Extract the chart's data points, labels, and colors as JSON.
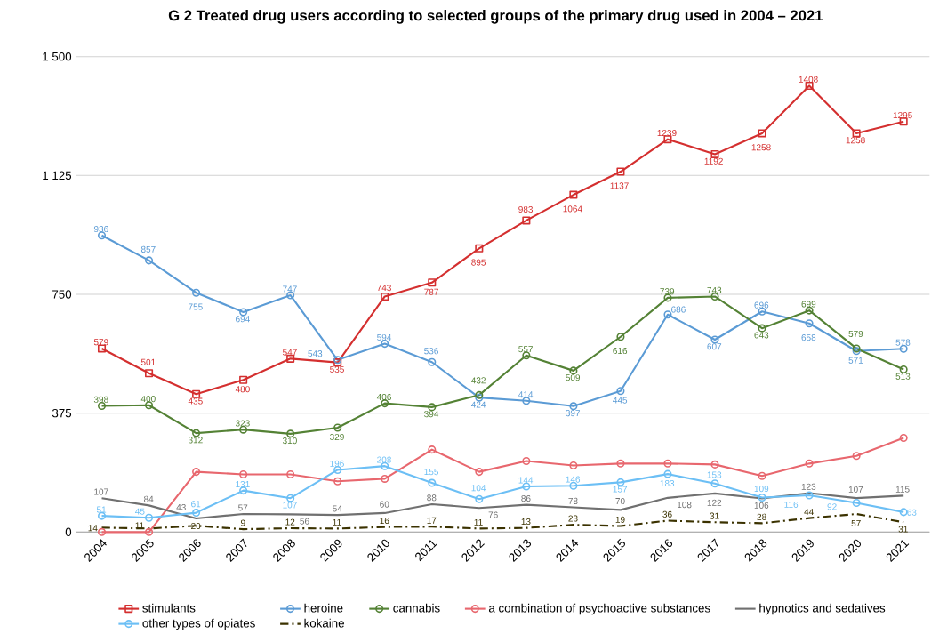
{
  "chart_data": {
    "type": "line",
    "title": "G 2 Treated drug users according to selected groups of the primary drug used in 2004 – 2021",
    "categories": [
      "2004",
      "2005",
      "2006",
      "2007",
      "2008",
      "2009",
      "2010",
      "2011",
      "2012",
      "2013",
      "2014",
      "2015",
      "2016",
      "2017",
      "2018",
      "2019",
      "2020",
      "2021"
    ],
    "ylim": [
      0,
      1500
    ],
    "yticks": [
      0,
      375,
      750,
      {
        "value": 1125,
        "label": "1 125"
      },
      {
        "value": 1500,
        "label": "1 500"
      }
    ],
    "grid": "y",
    "legend": "bottom",
    "series": [
      {
        "name": "stimulants",
        "color": "#d42f2f",
        "marker": "square",
        "values": [
          579,
          501,
          435,
          480,
          547,
          535,
          743,
          787,
          895,
          983,
          1064,
          1137,
          1239,
          1192,
          1258,
          1408,
          1258,
          1295
        ],
        "value_labels": [
          "579",
          "501",
          "435",
          "480",
          "547",
          "535",
          "743",
          "787",
          "895",
          "983",
          "1064",
          "1137",
          "1239",
          "1192",
          "1258",
          "1408",
          "1258",
          "1295"
        ]
      },
      {
        "name": "heroine",
        "color": "#5b9bd5",
        "marker": "circle",
        "values": [
          936,
          857,
          755,
          694,
          747,
          543,
          594,
          536,
          424,
          414,
          397,
          445,
          686,
          607,
          696,
          658,
          571,
          578
        ],
        "value_labels": [
          "936",
          "857",
          "755",
          "694",
          "747",
          "543",
          "594",
          "536",
          "424",
          "414",
          "397",
          "445",
          "686",
          "607",
          "696",
          "658",
          "571",
          "578"
        ]
      },
      {
        "name": "cannabis",
        "color": "#548235",
        "marker": "circle",
        "values": [
          398,
          400,
          312,
          323,
          310,
          329,
          406,
          394,
          432,
          557,
          509,
          616,
          739,
          743,
          643,
          699,
          579,
          513
        ],
        "value_labels": [
          "398",
          "400",
          "312",
          "323",
          "310",
          "329",
          "406",
          "394",
          "432",
          "557",
          "509",
          "616",
          "739",
          "743",
          "643",
          "699",
          "579",
          "513"
        ]
      },
      {
        "name": "a combination of psychoactive substances",
        "color": "#e8676e",
        "marker": "circle",
        "values": [
          0,
          0,
          190,
          182,
          182,
          160,
          168,
          260,
          190,
          224,
          210,
          216,
          216,
          213,
          177,
          216,
          240,
          297
        ]
      },
      {
        "name": "hypnotics and sedatives",
        "color": "#707070",
        "marker": "none",
        "values": [
          107,
          84,
          43,
          57,
          56,
          54,
          60,
          88,
          76,
          86,
          78,
          70,
          108,
          122,
          106,
          123,
          107,
          115
        ],
        "value_labels": [
          "107",
          "84",
          "43",
          "57",
          "56",
          "54",
          "60",
          "88",
          "76",
          "86",
          "78",
          "70",
          "108",
          "122",
          "106",
          "123",
          "107",
          "115"
        ]
      },
      {
        "name": "other types of opiates",
        "color": "#6cbff5",
        "marker": "circle",
        "values": [
          51,
          45,
          61,
          131,
          107,
          196,
          208,
          155,
          104,
          144,
          146,
          157,
          183,
          153,
          109,
          116,
          92,
          63
        ],
        "value_labels": [
          "51",
          "45",
          "61",
          "131",
          "107",
          "196",
          "208",
          "155",
          "104",
          "144",
          "146",
          "157",
          "183",
          "153",
          "109",
          "116",
          "92",
          "63"
        ]
      },
      {
        "name": "kokaine",
        "color": "#3b3200",
        "marker": "none",
        "line_style": "dashdot",
        "values": [
          14,
          11,
          20,
          9,
          12,
          11,
          16,
          17,
          11,
          13,
          23,
          19,
          36,
          31,
          28,
          44,
          57,
          31
        ],
        "value_labels": [
          "14",
          "11",
          "20",
          "9",
          "12",
          "11",
          "16",
          "17",
          "11",
          "13",
          "23",
          "19",
          "36",
          "31",
          "28",
          "44",
          "57",
          "31"
        ]
      }
    ]
  }
}
